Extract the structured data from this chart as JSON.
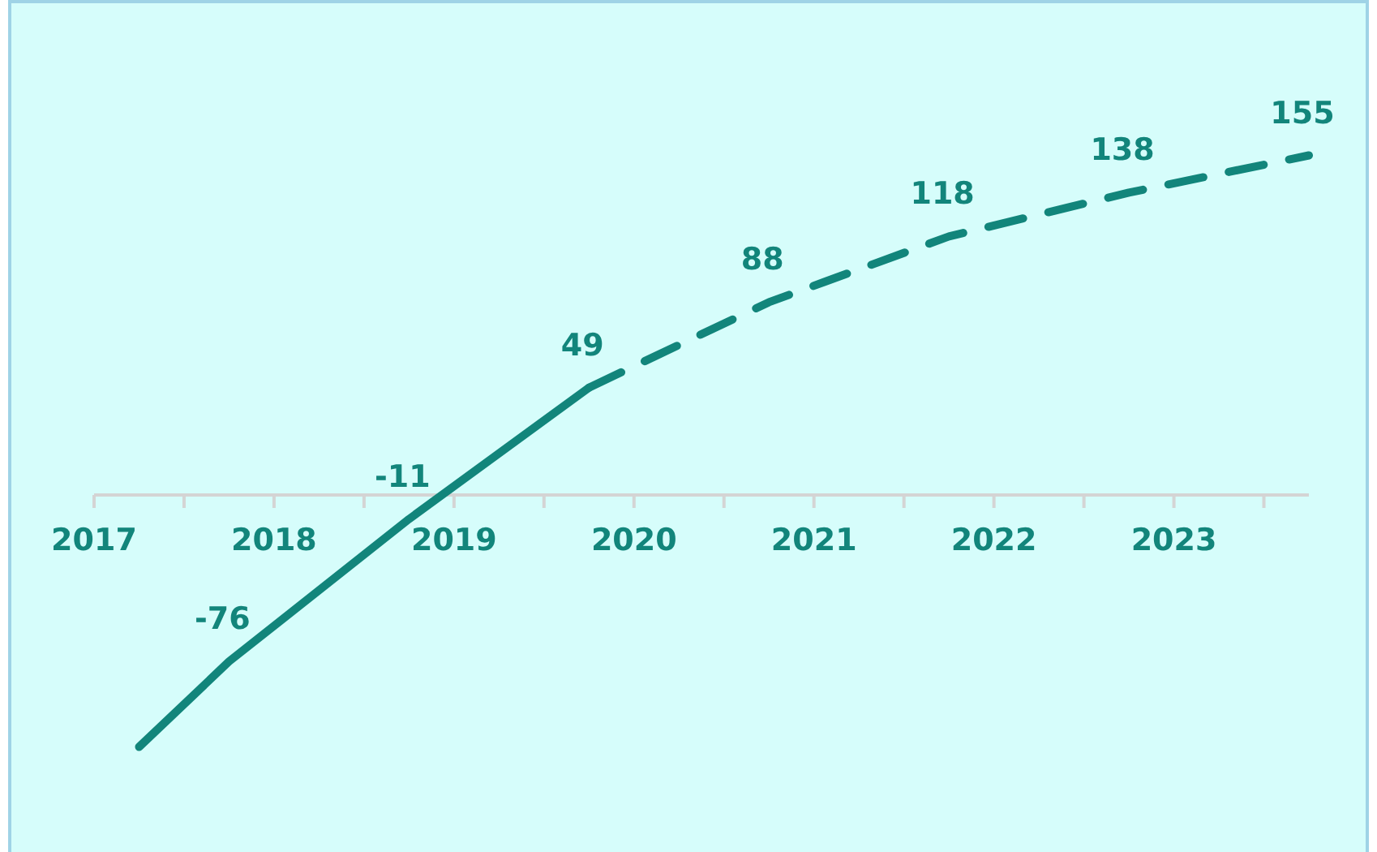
{
  "chart_data": {
    "type": "line",
    "xlim": [
      2017,
      2023.75
    ],
    "xticks": [
      {
        "value": 2017,
        "label": "2017"
      },
      {
        "value": 2017.5,
        "label": null
      },
      {
        "value": 2018,
        "label": "2018"
      },
      {
        "value": 2018.5,
        "label": null
      },
      {
        "value": 2019,
        "label": "2019"
      },
      {
        "value": 2019.5,
        "label": null
      },
      {
        "value": 2020,
        "label": "2020"
      },
      {
        "value": 2020.5,
        "label": null
      },
      {
        "value": 2021,
        "label": "2021"
      },
      {
        "value": 2021.5,
        "label": null
      },
      {
        "value": 2022,
        "label": "2022"
      },
      {
        "value": 2022.5,
        "label": null
      },
      {
        "value": 2023,
        "label": "2023"
      },
      {
        "value": 2023.5,
        "label": null
      }
    ],
    "tick_labels": "x",
    "grid": false,
    "marker": "none",
    "series": [
      {
        "color": "#12857b",
        "line_style": "solid",
        "x": [
          2017.25,
          2017.75,
          2018.75,
          2019.75
        ],
        "values": [
          -115,
          -76,
          -11,
          49
        ],
        "value_labels": [
          null,
          "-76",
          "-11",
          "49"
        ]
      },
      {
        "color": "#12857b",
        "line_style": "dashed",
        "x": [
          2019.75,
          2020.75,
          2021.75,
          2022.75,
          2023.75
        ],
        "values": [
          49,
          88,
          118,
          138,
          155
        ],
        "value_labels": [
          null,
          "88",
          "118",
          "138",
          "155"
        ]
      }
    ]
  }
}
